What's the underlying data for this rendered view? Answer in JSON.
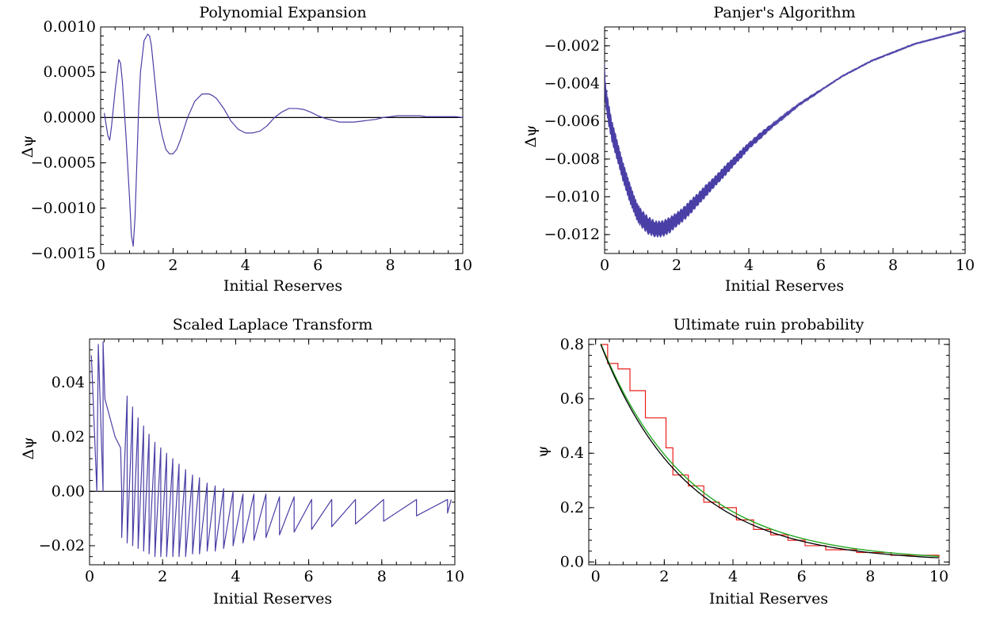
{
  "chart_data": [
    {
      "type": "line",
      "title": "Polynomial Expansion",
      "xlabel": "Initial Reserves",
      "ylabel": "Δψ",
      "xlim": [
        0,
        10
      ],
      "ylim": [
        -0.0015,
        0.001
      ],
      "xticks": [
        "0",
        "2",
        "4",
        "6",
        "8",
        "10"
      ],
      "yticks": [
        "0.0010",
        "0.0005",
        "0.0000",
        "−0.0005",
        "−0.0010",
        "−0.0015"
      ],
      "reference_line_y": 0,
      "colors": {
        "series": "#4a3fa6",
        "reference": "#000000"
      },
      "series": [
        {
          "x": [
            0.1,
            0.2,
            0.25,
            0.3,
            0.4,
            0.5,
            0.55,
            0.6,
            0.7,
            0.8,
            0.85,
            0.9,
            0.95,
            1.0,
            1.05,
            1.1,
            1.2,
            1.3,
            1.35,
            1.4,
            1.5,
            1.6,
            1.7,
            1.8,
            1.9,
            2.0,
            2.1,
            2.2,
            2.4,
            2.6,
            2.8,
            3.0,
            3.1,
            3.2,
            3.4,
            3.6,
            3.8,
            4.0,
            4.2,
            4.4,
            4.6,
            4.8,
            5.0,
            5.2,
            5.4,
            5.6,
            5.8,
            6.0,
            6.2,
            6.4,
            6.6,
            6.8,
            7.0,
            7.2,
            7.4,
            7.6,
            7.8,
            8.0,
            8.2,
            8.4,
            8.6,
            8.8,
            9.0,
            9.2,
            9.4,
            9.6,
            9.8,
            10.0
          ],
          "y": [
            5e-05,
            -0.0002,
            -0.00025,
            -0.0001,
            0.0003,
            0.00064,
            0.0006,
            0.0004,
            -0.0002,
            -0.0009,
            -0.0013,
            -0.00142,
            -0.0011,
            -0.0005,
            0.0001,
            0.0005,
            0.00085,
            0.00092,
            0.0009,
            0.0008,
            0.0004,
            0.0,
            -0.0002,
            -0.00035,
            -0.0004,
            -0.0004,
            -0.00035,
            -0.00025,
            0.0,
            0.00018,
            0.00026,
            0.00026,
            0.00024,
            0.00021,
            0.0001,
            -4e-05,
            -0.00013,
            -0.00017,
            -0.00017,
            -0.00015,
            -9e-05,
            0.0,
            6e-05,
            0.0001,
            0.0001,
            9e-05,
            6e-05,
            2e-05,
            -1e-05,
            -3e-05,
            -5e-05,
            -5e-05,
            -5e-05,
            -4e-05,
            -3e-05,
            -2e-05,
            0.0,
            1e-05,
            2e-05,
            2e-05,
            2e-05,
            2e-05,
            1e-05,
            1e-05,
            1e-05,
            1e-05,
            1e-05,
            0.0
          ]
        }
      ]
    },
    {
      "type": "line",
      "title": "Panjer's Algorithm",
      "xlabel": "Initial Reserves",
      "ylabel": "Δψ",
      "xlim": [
        0,
        10
      ],
      "ylim": [
        -0.013,
        -0.001
      ],
      "xticks": [
        "0",
        "2",
        "4",
        "6",
        "8",
        "10"
      ],
      "yticks": [
        "−0.002",
        "−0.004",
        "−0.006",
        "−0.008",
        "−0.010",
        "−0.012"
      ],
      "colors": {
        "series": "#4a3fa6"
      },
      "series": [
        {
          "x": [
            0.0,
            0.02,
            0.1,
            0.2,
            0.3,
            0.4,
            0.5,
            0.6,
            0.7,
            0.8,
            0.9,
            1.0,
            1.2,
            1.4,
            1.6,
            1.8,
            2.0,
            2.2,
            2.4,
            2.6,
            2.8,
            3.0,
            3.2,
            3.4,
            3.6,
            3.8,
            4.0,
            4.3,
            4.6,
            5.0,
            5.4,
            5.8,
            6.2,
            6.6,
            7.0,
            7.4,
            7.8,
            8.2,
            8.6,
            9.0,
            9.4,
            9.8,
            10.0
          ],
          "y": [
            -0.0029,
            -0.0045,
            -0.0055,
            -0.0065,
            -0.0072,
            -0.0079,
            -0.0086,
            -0.0092,
            -0.0098,
            -0.0103,
            -0.0108,
            -0.0111,
            -0.0115,
            -0.0117,
            -0.0117,
            -0.0115,
            -0.0112,
            -0.0109,
            -0.0105,
            -0.0101,
            -0.0097,
            -0.0093,
            -0.0089,
            -0.0085,
            -0.0081,
            -0.0077,
            -0.0073,
            -0.0068,
            -0.0063,
            -0.0057,
            -0.0051,
            -0.0046,
            -0.0041,
            -0.0036,
            -0.0032,
            -0.0028,
            -0.0025,
            -0.0022,
            -0.0019,
            -0.0017,
            -0.0015,
            -0.0013,
            -0.0012
          ],
          "jitter_amplitude": [
            0.0,
            0.0012,
            0.0013,
            0.0012,
            0.0012,
            0.0011,
            0.0011,
            0.0011,
            0.0011,
            0.001,
            0.001,
            0.001,
            0.001,
            0.0009,
            0.0009,
            0.0009,
            0.0008,
            0.0008,
            0.0008,
            0.0007,
            0.0007,
            0.0006,
            0.0006,
            0.0006,
            0.0005,
            0.0005,
            0.0004,
            0.0004,
            0.0003,
            0.0003,
            0.0002,
            0.0002,
            0.0001,
            0.0001,
            0.0001,
            0.0001,
            0.0001,
            0.0001,
            5e-05,
            5e-05,
            5e-05,
            5e-05,
            5e-05
          ]
        }
      ]
    },
    {
      "type": "line",
      "title": "Scaled Laplace Transform",
      "xlabel": "Initial Reserves",
      "ylabel": "Δψ",
      "xlim": [
        0,
        10
      ],
      "ylim": [
        -0.027,
        0.056
      ],
      "xticks": [
        "0",
        "2",
        "4",
        "6",
        "8",
        "10"
      ],
      "yticks": [
        "0.04",
        "0.02",
        "0.00",
        "−0.02"
      ],
      "reference_line_y": 0,
      "colors": {
        "series": "#4a3fa6",
        "reference": "#000000"
      },
      "series": [
        {
          "x": [
            0.05,
            0.2,
            0.24,
            0.37,
            0.37,
            0.42,
            0.7,
            0.85,
            0.88,
            0.88,
            1.03,
            1.03,
            1.18,
            1.18,
            1.33,
            1.33,
            1.48,
            1.48,
            1.63,
            1.63,
            1.79,
            1.79,
            1.95,
            1.95,
            2.11,
            2.11,
            2.28,
            2.28,
            2.45,
            2.45,
            2.63,
            2.63,
            2.82,
            2.82,
            3.01,
            3.01,
            3.22,
            3.22,
            3.44,
            3.44,
            3.67,
            3.67,
            3.93,
            3.93,
            4.2,
            4.2,
            4.5,
            4.5,
            4.83,
            4.83,
            5.2,
            5.2,
            5.6,
            5.6,
            6.08,
            6.08,
            6.63,
            6.63,
            7.28,
            7.28,
            8.05,
            8.05,
            8.95,
            8.95,
            9.8,
            9.8,
            9.9
          ],
          "y": [
            0.05,
            0.0,
            0.054,
            0.0,
            0.055,
            0.034,
            0.02,
            0.016,
            0.0,
            -0.017,
            0.035,
            -0.019,
            0.031,
            -0.02,
            0.027,
            -0.021,
            0.024,
            -0.022,
            0.021,
            -0.023,
            0.018,
            -0.024,
            0.016,
            -0.024,
            0.014,
            -0.024,
            0.012,
            -0.024,
            0.01,
            -0.024,
            0.008,
            -0.024,
            0.006,
            -0.023,
            0.005,
            -0.023,
            0.003,
            -0.022,
            0.002,
            -0.022,
            0.001,
            -0.021,
            0.0,
            -0.02,
            -0.001,
            -0.019,
            -0.001,
            -0.018,
            -0.001,
            -0.017,
            -0.002,
            -0.016,
            -0.002,
            -0.015,
            -0.003,
            -0.014,
            -0.003,
            -0.013,
            -0.003,
            -0.012,
            -0.003,
            -0.011,
            -0.003,
            -0.009,
            -0.003,
            -0.008,
            -0.003
          ]
        }
      ]
    },
    {
      "type": "line",
      "title": "Ultimate ruin probability",
      "xlabel": "Initial Reserves",
      "ylabel": "ψ",
      "xlim": [
        -0.2,
        10.3
      ],
      "ylim": [
        -0.01,
        0.82
      ],
      "xticks": [
        "0",
        "2",
        "4",
        "6",
        "8",
        "10"
      ],
      "yticks": [
        "0.8",
        "0.6",
        "0.4",
        "0.2",
        "0.0"
      ],
      "colors": {
        "exact": "#000000",
        "smooth": "#1fa81f",
        "step": "#e8201c"
      },
      "curve": {
        "x_start": 0.15,
        "x_end": 10.0,
        "amplitude": 0.8,
        "rate": 0.4
      },
      "steps": {
        "x": [
          0.15,
          0.35,
          0.65,
          1.0,
          1.45,
          2.05,
          2.25,
          2.7,
          3.15,
          3.6,
          4.1,
          4.6,
          5.1,
          5.6,
          6.1,
          6.7,
          7.6,
          8.6,
          10.0
        ],
        "y": [
          0.8,
          0.73,
          0.71,
          0.63,
          0.53,
          0.42,
          0.32,
          0.28,
          0.22,
          0.2,
          0.155,
          0.12,
          0.1,
          0.08,
          0.06,
          0.045,
          0.035,
          0.025,
          0.015
        ]
      }
    }
  ]
}
